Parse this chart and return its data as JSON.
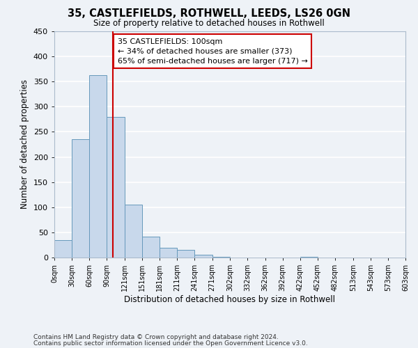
{
  "title": "35, CASTLEFIELDS, ROTHWELL, LEEDS, LS26 0GN",
  "subtitle": "Size of property relative to detached houses in Rothwell",
  "xlabel": "Distribution of detached houses by size in Rothwell",
  "ylabel": "Number of detached properties",
  "bar_color": "#c8d8eb",
  "bar_edge_color": "#6699bb",
  "background_color": "#eef2f7",
  "grid_color": "#ffffff",
  "tick_labels": [
    "0sqm",
    "30sqm",
    "60sqm",
    "90sqm",
    "121sqm",
    "151sqm",
    "181sqm",
    "211sqm",
    "241sqm",
    "271sqm",
    "302sqm",
    "332sqm",
    "362sqm",
    "392sqm",
    "422sqm",
    "452sqm",
    "482sqm",
    "513sqm",
    "543sqm",
    "573sqm",
    "603sqm"
  ],
  "bin_edges": [
    0,
    30,
    60,
    90,
    121,
    151,
    181,
    211,
    241,
    271,
    302,
    332,
    362,
    392,
    422,
    452,
    482,
    513,
    543,
    573,
    603
  ],
  "bar_heights": [
    35,
    235,
    363,
    280,
    105,
    42,
    20,
    15,
    6,
    1,
    0,
    0,
    0,
    0,
    1,
    0,
    0,
    0,
    0,
    0
  ],
  "ylim": [
    0,
    450
  ],
  "yticks": [
    0,
    50,
    100,
    150,
    200,
    250,
    300,
    350,
    400,
    450
  ],
  "property_size": 100,
  "vline_color": "#cc0000",
  "annotation_line1": "35 CASTLEFIELDS: 100sqm",
  "annotation_line2": "← 34% of detached houses are smaller (373)",
  "annotation_line3": "65% of semi-detached houses are larger (717) →",
  "annotation_box_color": "#ffffff",
  "annotation_box_edge_color": "#cc0000",
  "footnote1": "Contains HM Land Registry data © Crown copyright and database right 2024.",
  "footnote2": "Contains public sector information licensed under the Open Government Licence v3.0."
}
